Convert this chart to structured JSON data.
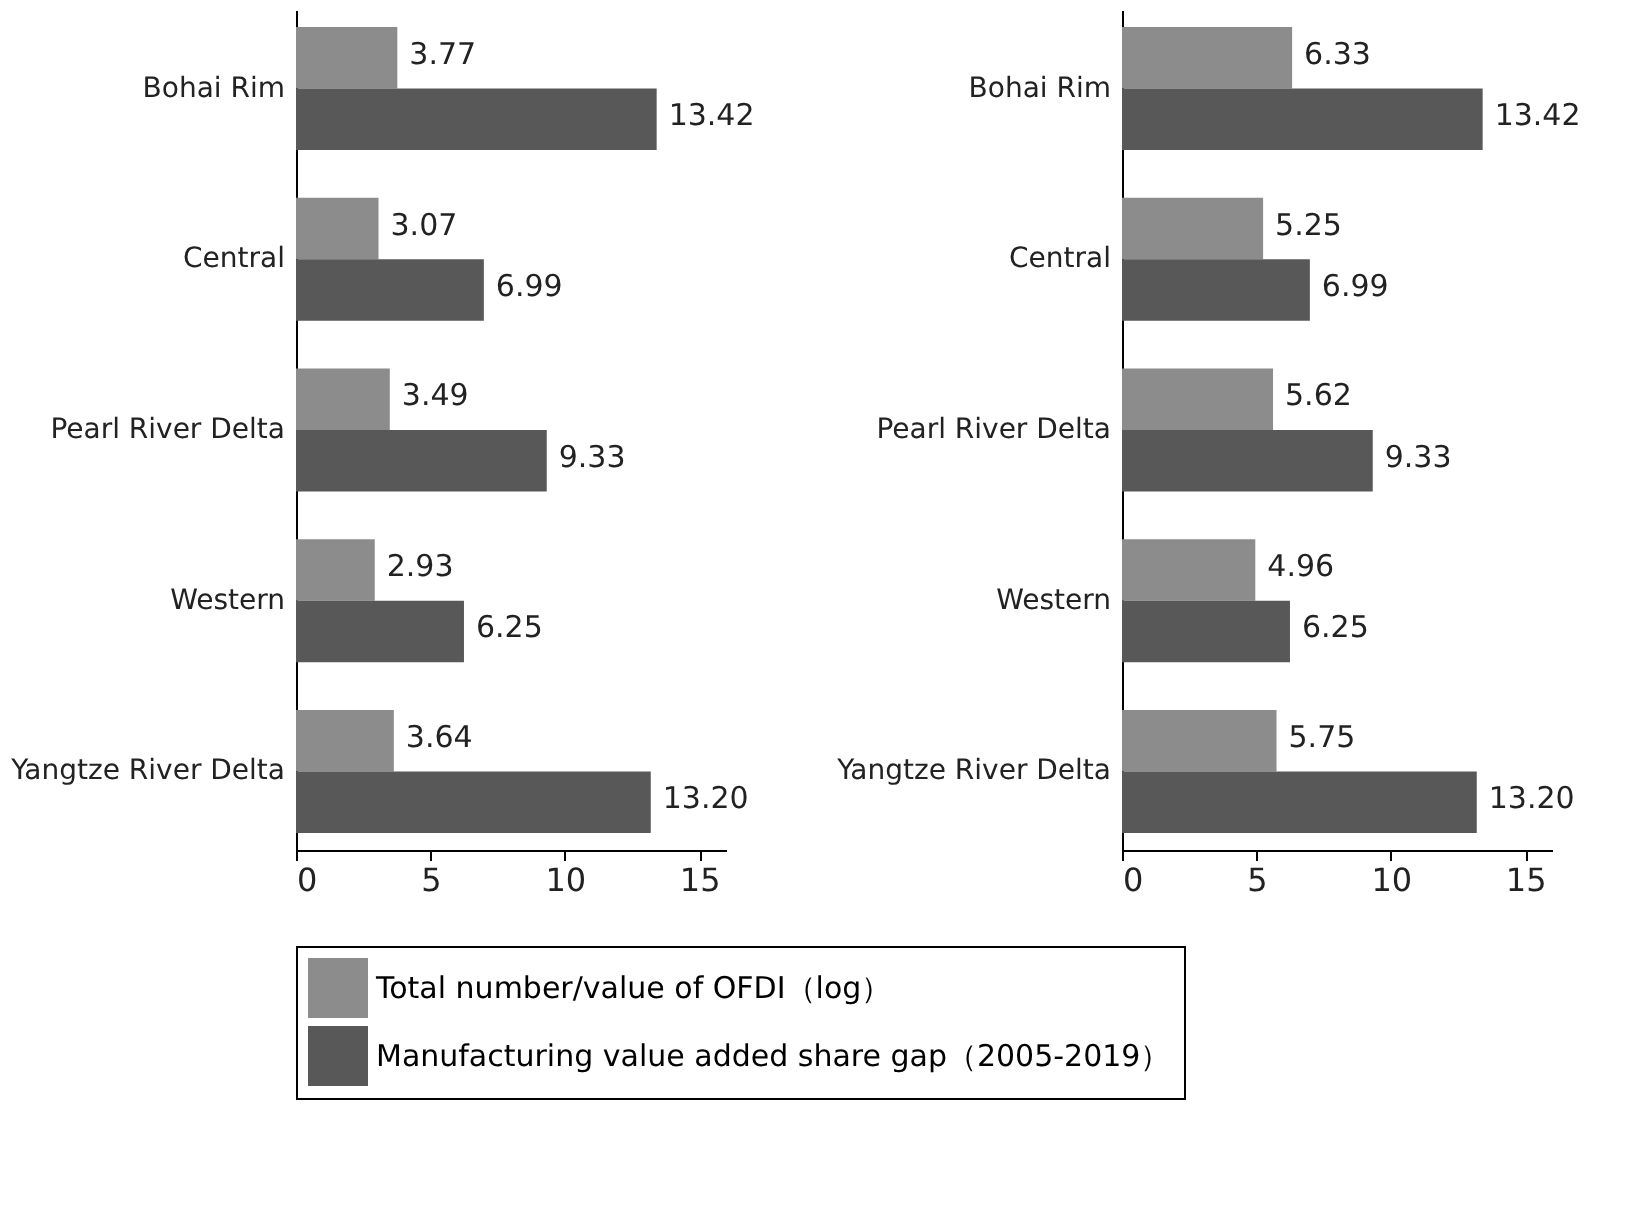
{
  "chart_data": [
    {
      "type": "bar",
      "orientation": "horizontal",
      "categories": [
        "Bohai Rim",
        "Central",
        "Pearl River Delta",
        "Western",
        "Yangtze River Delta"
      ],
      "series": [
        {
          "name": "Total number/value of OFDI（log）",
          "color": "#8c8c8c",
          "values": [
            3.77,
            3.07,
            3.49,
            2.93,
            3.64
          ],
          "value_labels": [
            "3.77",
            "3.07",
            "3.49",
            "2.93",
            "3.64"
          ]
        },
        {
          "name": "Manufacturing value added share gap（2005-2019）",
          "color": "#585858",
          "values": [
            13.42,
            6.99,
            9.33,
            6.25,
            13.2
          ],
          "value_labels": [
            "13.42",
            "6.99",
            "9.33",
            "6.25",
            "13.20"
          ]
        }
      ],
      "xlim": [
        0,
        16
      ],
      "xticks": [
        0,
        5,
        10,
        15
      ],
      "grid": false,
      "legend": "bottom"
    },
    {
      "type": "bar",
      "orientation": "horizontal",
      "categories": [
        "Bohai Rim",
        "Central",
        "Pearl River Delta",
        "Western",
        "Yangtze River Delta"
      ],
      "series": [
        {
          "name": "Total number/value of OFDI（log）",
          "color": "#8c8c8c",
          "values": [
            6.33,
            5.25,
            5.62,
            4.96,
            5.75
          ],
          "value_labels": [
            "6.33",
            "5.25",
            "5.62",
            "4.96",
            "5.75"
          ]
        },
        {
          "name": "Manufacturing value added share gap（2005-2019）",
          "color": "#585858",
          "values": [
            13.42,
            6.99,
            9.33,
            6.25,
            13.2
          ],
          "value_labels": [
            "13.42",
            "6.99",
            "9.33",
            "6.25",
            "13.20"
          ]
        }
      ],
      "xlim": [
        0,
        16
      ],
      "xticks": [
        0,
        5,
        10,
        15
      ],
      "grid": false,
      "legend": false
    }
  ]
}
